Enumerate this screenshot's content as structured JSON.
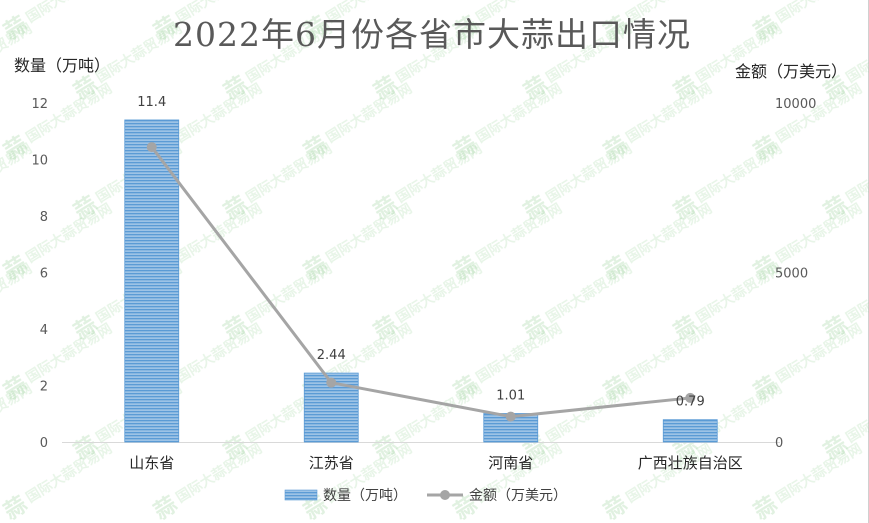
{
  "chart_data": {
    "type": "bar",
    "title": "2022年6月份各省市大蒜出口情况",
    "categories": [
      "山东省",
      "江苏省",
      "河南省",
      "广西壮族自治区"
    ],
    "series": [
      {
        "name": "数量（万吨）",
        "type": "bar",
        "axis": "left",
        "values": [
          11.4,
          2.44,
          1.01,
          0.79
        ],
        "color": "#5b9bd5"
      },
      {
        "name": "金额（万美元）",
        "type": "line",
        "axis": "right",
        "values": [
          8700,
          1750,
          750,
          1300
        ],
        "color": "#a5a5a5"
      }
    ],
    "data_labels": [
      "11.4",
      "2.44",
      "1.01",
      "0.79"
    ],
    "ylabel_left": "数量（万吨）",
    "ylabel_right": "金额（万美元）",
    "ylim_left": [
      0,
      12
    ],
    "yticks_left": [
      "0",
      "2",
      "4",
      "6",
      "8",
      "10",
      "12"
    ],
    "ylim_right": [
      0,
      10000
    ],
    "yticks_right": [
      "0",
      "5000",
      "10000"
    ],
    "grid": false,
    "legend_position": "bottom"
  },
  "watermark": {
    "text": "国际大蒜贸易网",
    "logo": "蒜"
  }
}
